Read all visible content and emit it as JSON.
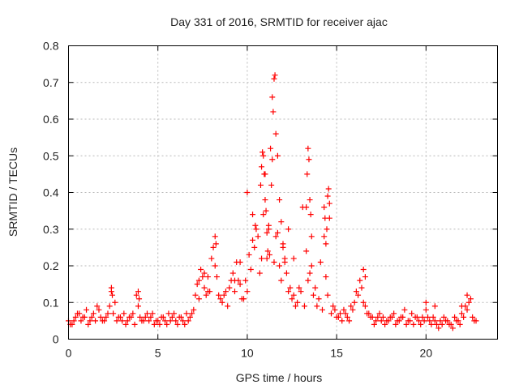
{
  "chart_data": {
    "type": "scatter",
    "title": "Day 331 of 2016, SRMTID for receiver ajac",
    "xlabel": "GPS time / hours",
    "ylabel": "SRMTID / TECUs",
    "xlim": [
      0,
      24
    ],
    "ylim": [
      0,
      0.8
    ],
    "xticks": [
      0,
      5,
      10,
      15,
      20
    ],
    "xtick_labels": [
      "0",
      "5",
      "10",
      "15",
      "20"
    ],
    "yticks": [
      0,
      0.1,
      0.2,
      0.3,
      0.4,
      0.5,
      0.6,
      0.7,
      0.8
    ],
    "ytick_labels": [
      "0",
      "0.1",
      "0.2",
      "0.3",
      "0.4",
      "0.5",
      "0.6",
      "0.7",
      "0.8"
    ],
    "grid": true,
    "marker": "+",
    "marker_color": "#ff0000",
    "series": [
      {
        "name": "SRMTID",
        "x": [
          0.0,
          0.2,
          0.4,
          0.6,
          0.8,
          1.0,
          1.2,
          1.4,
          1.6,
          1.8,
          2.0,
          2.2,
          2.4,
          2.6,
          2.8,
          3.0,
          3.2,
          3.4,
          3.6,
          3.8,
          4.0,
          4.2,
          4.4,
          4.6,
          4.8,
          5.0,
          5.2,
          5.4,
          5.6,
          5.8,
          6.0,
          6.2,
          6.4,
          6.6,
          6.8,
          7.0,
          7.2,
          7.4,
          7.6,
          7.8,
          8.0,
          8.2,
          8.4,
          8.6,
          8.8,
          9.0,
          9.2,
          9.4,
          9.6,
          9.8,
          10.0,
          10.2,
          10.4,
          10.6,
          10.8,
          11.0,
          11.2,
          11.4,
          11.6,
          11.8,
          12.0,
          12.2,
          12.4,
          12.6,
          12.8,
          13.0,
          13.2,
          13.4,
          13.6,
          13.8,
          14.0,
          14.2,
          14.4,
          14.6,
          14.8,
          15.0,
          15.2,
          15.4,
          15.6,
          15.8,
          16.0,
          16.2,
          16.4,
          16.6,
          16.8,
          17.0,
          17.2,
          17.4,
          17.6,
          17.8,
          18.0,
          18.2,
          18.4,
          18.6,
          18.8,
          19.0,
          19.2,
          19.4,
          19.6,
          19.8,
          20.0,
          20.2,
          20.4,
          20.6,
          20.8,
          21.0,
          21.2,
          21.4,
          21.6,
          21.8,
          22.0,
          22.2,
          22.4,
          22.6,
          22.8,
          0.1,
          0.3,
          0.5,
          0.7,
          0.9,
          1.1,
          1.3,
          1.5,
          1.7,
          1.9,
          2.1,
          2.3,
          2.5,
          2.7,
          2.9,
          3.1,
          3.3,
          3.5,
          3.7,
          3.9,
          4.1,
          4.3,
          4.5,
          4.7,
          4.9,
          5.1,
          5.3,
          5.5,
          5.7,
          5.9,
          6.1,
          6.3,
          6.5,
          6.7,
          6.9,
          7.1,
          7.3,
          7.5,
          7.7,
          7.9,
          8.1,
          8.3,
          8.5,
          8.7,
          8.9,
          9.1,
          9.3,
          9.5,
          9.7,
          9.9,
          10.1,
          10.3,
          10.5,
          10.7,
          10.9,
          11.1,
          11.3,
          11.5,
          11.7,
          11.9,
          12.1,
          12.3,
          12.5,
          12.7,
          12.9,
          13.1,
          13.3,
          13.5,
          13.7,
          13.9,
          14.1,
          14.3,
          14.5,
          14.7,
          14.9,
          15.1,
          15.3,
          15.5,
          15.7,
          15.9,
          16.1,
          16.3,
          16.5,
          16.7,
          16.9,
          17.1,
          17.3,
          17.5,
          17.7,
          17.9,
          18.1,
          18.3,
          18.5,
          18.7,
          18.9,
          19.1,
          19.3,
          19.5,
          19.7,
          19.9,
          20.1,
          20.3,
          20.5,
          20.7,
          20.9,
          21.1,
          21.3,
          21.5,
          21.7,
          21.9,
          22.1,
          22.3,
          22.5,
          22.7,
          2.4,
          2.45,
          3.9,
          3.95,
          7.3,
          7.6,
          7.8,
          8.2,
          8.25,
          9.3,
          9.6,
          10.0,
          10.3,
          10.45,
          10.75,
          10.8,
          10.85,
          10.9,
          10.95,
          11.0,
          11.05,
          11.1,
          11.15,
          11.2,
          11.25,
          11.35,
          11.4,
          11.45,
          11.5,
          11.55,
          11.6,
          11.7,
          11.8,
          11.9,
          12.0,
          12.1,
          12.3,
          12.6,
          13.3,
          13.35,
          13.4,
          13.45,
          13.5,
          13.55,
          13.6,
          14.3,
          14.35,
          14.4,
          14.45,
          14.5,
          14.55,
          14.6,
          16.5,
          16.6,
          20.0,
          20.5,
          22.0,
          22.3
        ],
        "y": [
          0.05,
          0.04,
          0.06,
          0.07,
          0.06,
          0.08,
          0.05,
          0.07,
          0.09,
          0.06,
          0.05,
          0.07,
          0.13,
          0.1,
          0.06,
          0.05,
          0.04,
          0.06,
          0.07,
          0.12,
          0.06,
          0.05,
          0.07,
          0.06,
          0.04,
          0.05,
          0.06,
          0.05,
          0.07,
          0.06,
          0.05,
          0.06,
          0.05,
          0.07,
          0.06,
          0.08,
          0.15,
          0.19,
          0.14,
          0.17,
          0.22,
          0.2,
          0.12,
          0.1,
          0.13,
          0.14,
          0.18,
          0.21,
          0.15,
          0.11,
          0.13,
          0.19,
          0.25,
          0.28,
          0.22,
          0.45,
          0.3,
          0.66,
          0.28,
          0.2,
          0.25,
          0.18,
          0.14,
          0.12,
          0.1,
          0.13,
          0.09,
          0.16,
          0.2,
          0.14,
          0.11,
          0.08,
          0.17,
          0.33,
          0.09,
          0.06,
          0.07,
          0.08,
          0.06,
          0.09,
          0.1,
          0.12,
          0.14,
          0.09,
          0.07,
          0.06,
          0.05,
          0.07,
          0.06,
          0.05,
          0.06,
          0.07,
          0.05,
          0.06,
          0.08,
          0.05,
          0.07,
          0.06,
          0.05,
          0.06,
          0.08,
          0.05,
          0.06,
          0.04,
          0.05,
          0.06,
          0.05,
          0.04,
          0.06,
          0.05,
          0.07,
          0.09,
          0.1,
          0.06,
          0.05,
          0.04,
          0.05,
          0.07,
          0.05,
          0.06,
          0.04,
          0.06,
          0.05,
          0.08,
          0.05,
          0.06,
          0.09,
          0.07,
          0.05,
          0.06,
          0.07,
          0.05,
          0.06,
          0.04,
          0.09,
          0.05,
          0.06,
          0.05,
          0.07,
          0.05,
          0.04,
          0.06,
          0.04,
          0.05,
          0.07,
          0.04,
          0.06,
          0.04,
          0.05,
          0.07,
          0.12,
          0.11,
          0.17,
          0.12,
          0.13,
          0.25,
          0.17,
          0.11,
          0.12,
          0.09,
          0.16,
          0.13,
          0.16,
          0.11,
          0.16,
          0.23,
          0.27,
          0.3,
          0.18,
          0.34,
          0.22,
          0.52,
          0.21,
          0.29,
          0.16,
          0.21,
          0.13,
          0.11,
          0.09,
          0.14,
          0.36,
          0.24,
          0.18,
          0.12,
          0.09,
          0.21,
          0.28,
          0.12,
          0.07,
          0.08,
          0.06,
          0.05,
          0.07,
          0.05,
          0.08,
          0.13,
          0.16,
          0.1,
          0.07,
          0.06,
          0.04,
          0.06,
          0.05,
          0.04,
          0.05,
          0.06,
          0.04,
          0.05,
          0.06,
          0.04,
          0.05,
          0.04,
          0.06,
          0.04,
          0.05,
          0.06,
          0.04,
          0.05,
          0.03,
          0.04,
          0.05,
          0.04,
          0.03,
          0.05,
          0.04,
          0.06,
          0.08,
          0.11,
          0.05,
          0.14,
          0.12,
          0.13,
          0.11,
          0.16,
          0.18,
          0.13,
          0.28,
          0.26,
          0.16,
          0.21,
          0.4,
          0.34,
          0.31,
          0.42,
          0.47,
          0.51,
          0.5,
          0.45,
          0.38,
          0.35,
          0.29,
          0.24,
          0.31,
          0.23,
          0.42,
          0.49,
          0.62,
          0.71,
          0.72,
          0.56,
          0.5,
          0.38,
          0.32,
          0.26,
          0.22,
          0.3,
          0.22,
          0.36,
          0.45,
          0.52,
          0.49,
          0.38,
          0.34,
          0.28,
          0.36,
          0.33,
          0.26,
          0.3,
          0.39,
          0.41,
          0.37,
          0.19,
          0.17,
          0.1,
          0.09,
          0.09,
          0.12
        ]
      }
    ]
  }
}
